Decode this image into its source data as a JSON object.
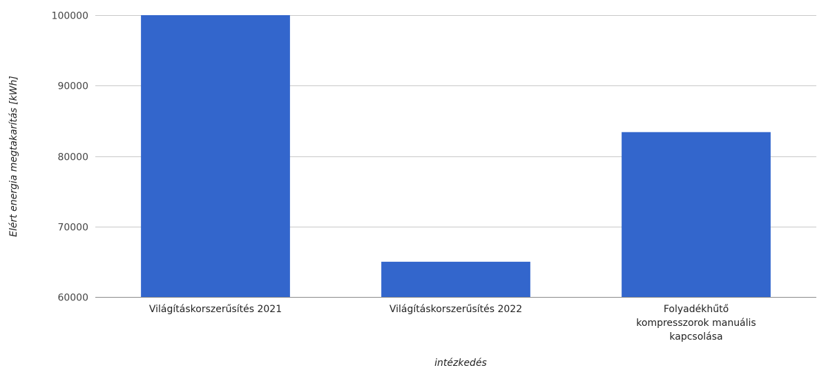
{
  "chart_data": {
    "type": "bar",
    "title": "",
    "xlabel": "intézkedés",
    "ylabel": "Elért energia megtakarítás [kWh]",
    "ylim": [
      60000,
      100000
    ],
    "yticks": [
      60000,
      70000,
      80000,
      90000,
      100000
    ],
    "grid": true,
    "legend": "none",
    "bar_color": "#3366cc",
    "categories": [
      [
        "Világításkorszerűsítés 2021"
      ],
      [
        "Világításkorszerűsítés 2022"
      ],
      [
        "Folyadékhűtő",
        "kompresszorok manuális",
        "kapcsolása"
      ]
    ],
    "values": [
      100000,
      65000,
      83400
    ]
  }
}
